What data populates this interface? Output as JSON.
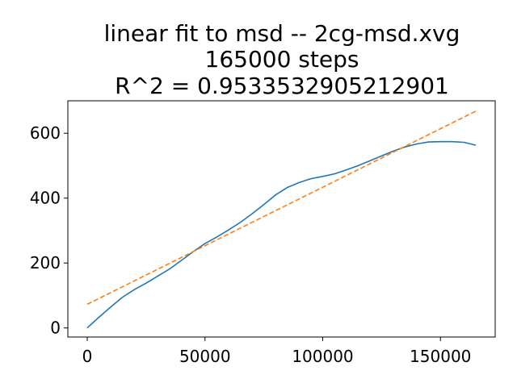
{
  "chart_data": {
    "type": "line",
    "title_lines": [
      "linear fit to msd -- 2cg-msd.xvg",
      "165000 steps",
      "R^2 = 0.9533532905212901"
    ],
    "xlabel": "",
    "ylabel": "",
    "xlim": [
      -8250,
      173250
    ],
    "ylim": [
      -28,
      700
    ],
    "x_ticks": [
      0,
      50000,
      100000,
      150000
    ],
    "y_ticks": [
      0,
      200,
      400,
      600
    ],
    "grid": false,
    "legend": "none",
    "series": [
      {
        "color": "#1f77b4",
        "dash": "solid",
        "x": [
          0,
          5000,
          10000,
          15000,
          20000,
          25000,
          30000,
          35000,
          40000,
          45000,
          50000,
          55000,
          60000,
          65000,
          70000,
          75000,
          80000,
          85000,
          90000,
          95000,
          100000,
          105000,
          110000,
          115000,
          120000,
          125000,
          130000,
          135000,
          140000,
          145000,
          150000,
          155000,
          160000,
          165000
        ],
        "y": [
          0,
          33,
          65,
          95,
          118,
          138,
          160,
          182,
          208,
          235,
          260,
          280,
          302,
          325,
          352,
          380,
          410,
          433,
          448,
          460,
          467,
          475,
          487,
          500,
          515,
          530,
          545,
          558,
          567,
          573,
          574,
          574,
          572,
          563
        ]
      },
      {
        "color": "#ff7f0e",
        "dash": "dashed",
        "x": [
          0,
          165000
        ],
        "y": [
          73,
          668
        ]
      }
    ]
  }
}
